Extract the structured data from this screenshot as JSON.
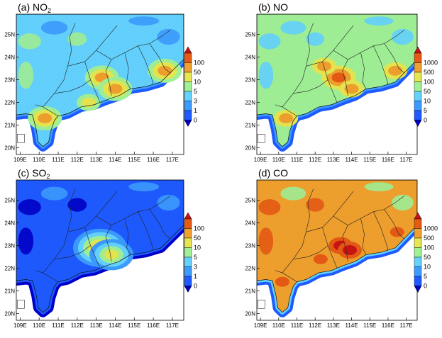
{
  "chart_data": [
    {
      "type": "heatmap",
      "title": "(a) NO",
      "title_sub": "2",
      "x_ticks": [
        "109E",
        "110E",
        "111E",
        "112E",
        "113E",
        "114E",
        "115E",
        "116E",
        "117E"
      ],
      "y_ticks": [
        "20N",
        "21N",
        "22N",
        "23N",
        "24N",
        "25N"
      ],
      "xlim": [
        108.8,
        117.6
      ],
      "ylim": [
        19.7,
        25.9
      ],
      "colorbar_levels": [
        "0",
        "1",
        "3",
        "5",
        "10",
        "50",
        "100"
      ],
      "colorbar_colors": [
        "#0000c8",
        "#1e5aff",
        "#3c9bff",
        "#64d2ff",
        "#a0f096",
        "#e6e650",
        "#f0a02d",
        "#e65a14",
        "#c81414"
      ],
      "hotspots": [
        {
          "lon": 113.3,
          "lat": 23.1,
          "level": 6
        },
        {
          "lon": 114.0,
          "lat": 22.6,
          "level": 6
        },
        {
          "lon": 110.3,
          "lat": 21.3,
          "level": 6
        },
        {
          "lon": 116.6,
          "lat": 23.4,
          "level": 6
        },
        {
          "lon": 112.6,
          "lat": 22.0,
          "level": 5
        }
      ]
    },
    {
      "type": "heatmap",
      "title": "(b) NO",
      "title_sub": "",
      "x_ticks": [
        "109E",
        "110E",
        "111E",
        "112E",
        "113E",
        "114E",
        "115E",
        "116E",
        "117E"
      ],
      "y_ticks": [
        "20N",
        "21N",
        "22N",
        "23N",
        "24N",
        "25N"
      ],
      "xlim": [
        108.8,
        117.6
      ],
      "ylim": [
        19.7,
        25.9
      ],
      "colorbar_levels": [
        "0",
        "5",
        "10",
        "50",
        "100",
        "500",
        "1000"
      ],
      "colorbar_colors": [
        "#0000c8",
        "#1e5aff",
        "#3c9bff",
        "#64d2ff",
        "#a0f096",
        "#e6e650",
        "#f0a02d",
        "#e65a14",
        "#c81414"
      ],
      "hotspots": [
        {
          "lon": 113.3,
          "lat": 23.1,
          "level": 7
        },
        {
          "lon": 114.0,
          "lat": 22.6,
          "level": 6
        },
        {
          "lon": 112.5,
          "lat": 23.6,
          "level": 6
        },
        {
          "lon": 116.4,
          "lat": 23.4,
          "level": 6
        },
        {
          "lon": 110.4,
          "lat": 21.3,
          "level": 6
        }
      ]
    },
    {
      "type": "heatmap",
      "title": "(c) SO",
      "title_sub": "2",
      "x_ticks": [
        "109E",
        "110E",
        "111E",
        "112E",
        "113E",
        "114E",
        "115E",
        "116E",
        "117E"
      ],
      "y_ticks": [
        "20N",
        "21N",
        "22N",
        "23N",
        "24N",
        "25N"
      ],
      "xlim": [
        108.8,
        117.6
      ],
      "ylim": [
        19.7,
        25.9
      ],
      "colorbar_levels": [
        "0",
        "1",
        "3",
        "5",
        "10",
        "50",
        "100"
      ],
      "colorbar_colors": [
        "#0000c8",
        "#1e5aff",
        "#3c9bff",
        "#64d2ff",
        "#a0f096",
        "#e6e650",
        "#f0a02d",
        "#e65a14",
        "#c81414"
      ],
      "hotspots": [
        {
          "lon": 113.2,
          "lat": 22.9,
          "level": 6
        },
        {
          "lon": 113.8,
          "lat": 22.6,
          "level": 5
        }
      ]
    },
    {
      "type": "heatmap",
      "title": "(d) CO",
      "title_sub": "",
      "x_ticks": [
        "109E",
        "110E",
        "111E",
        "112E",
        "113E",
        "114E",
        "115E",
        "116E",
        "117E"
      ],
      "y_ticks": [
        "20N",
        "21N",
        "22N",
        "23N",
        "24N",
        "25N"
      ],
      "xlim": [
        108.8,
        117.6
      ],
      "ylim": [
        19.7,
        25.9
      ],
      "colorbar_levels": [
        "0",
        "5",
        "10",
        "50",
        "100",
        "500",
        "1000"
      ],
      "colorbar_colors": [
        "#0000c8",
        "#1e5aff",
        "#3c9bff",
        "#64d2ff",
        "#a0f096",
        "#e6e650",
        "#f0a02d",
        "#e65a14",
        "#c81414"
      ],
      "hotspots": [
        {
          "lon": 113.4,
          "lat": 23.0,
          "level": 8
        },
        {
          "lon": 113.9,
          "lat": 22.8,
          "level": 8
        },
        {
          "lon": 110.2,
          "lat": 21.4,
          "level": 7
        },
        {
          "lon": 116.5,
          "lat": 23.6,
          "level": 7
        },
        {
          "lon": 112.3,
          "lat": 22.4,
          "level": 7
        }
      ]
    }
  ]
}
